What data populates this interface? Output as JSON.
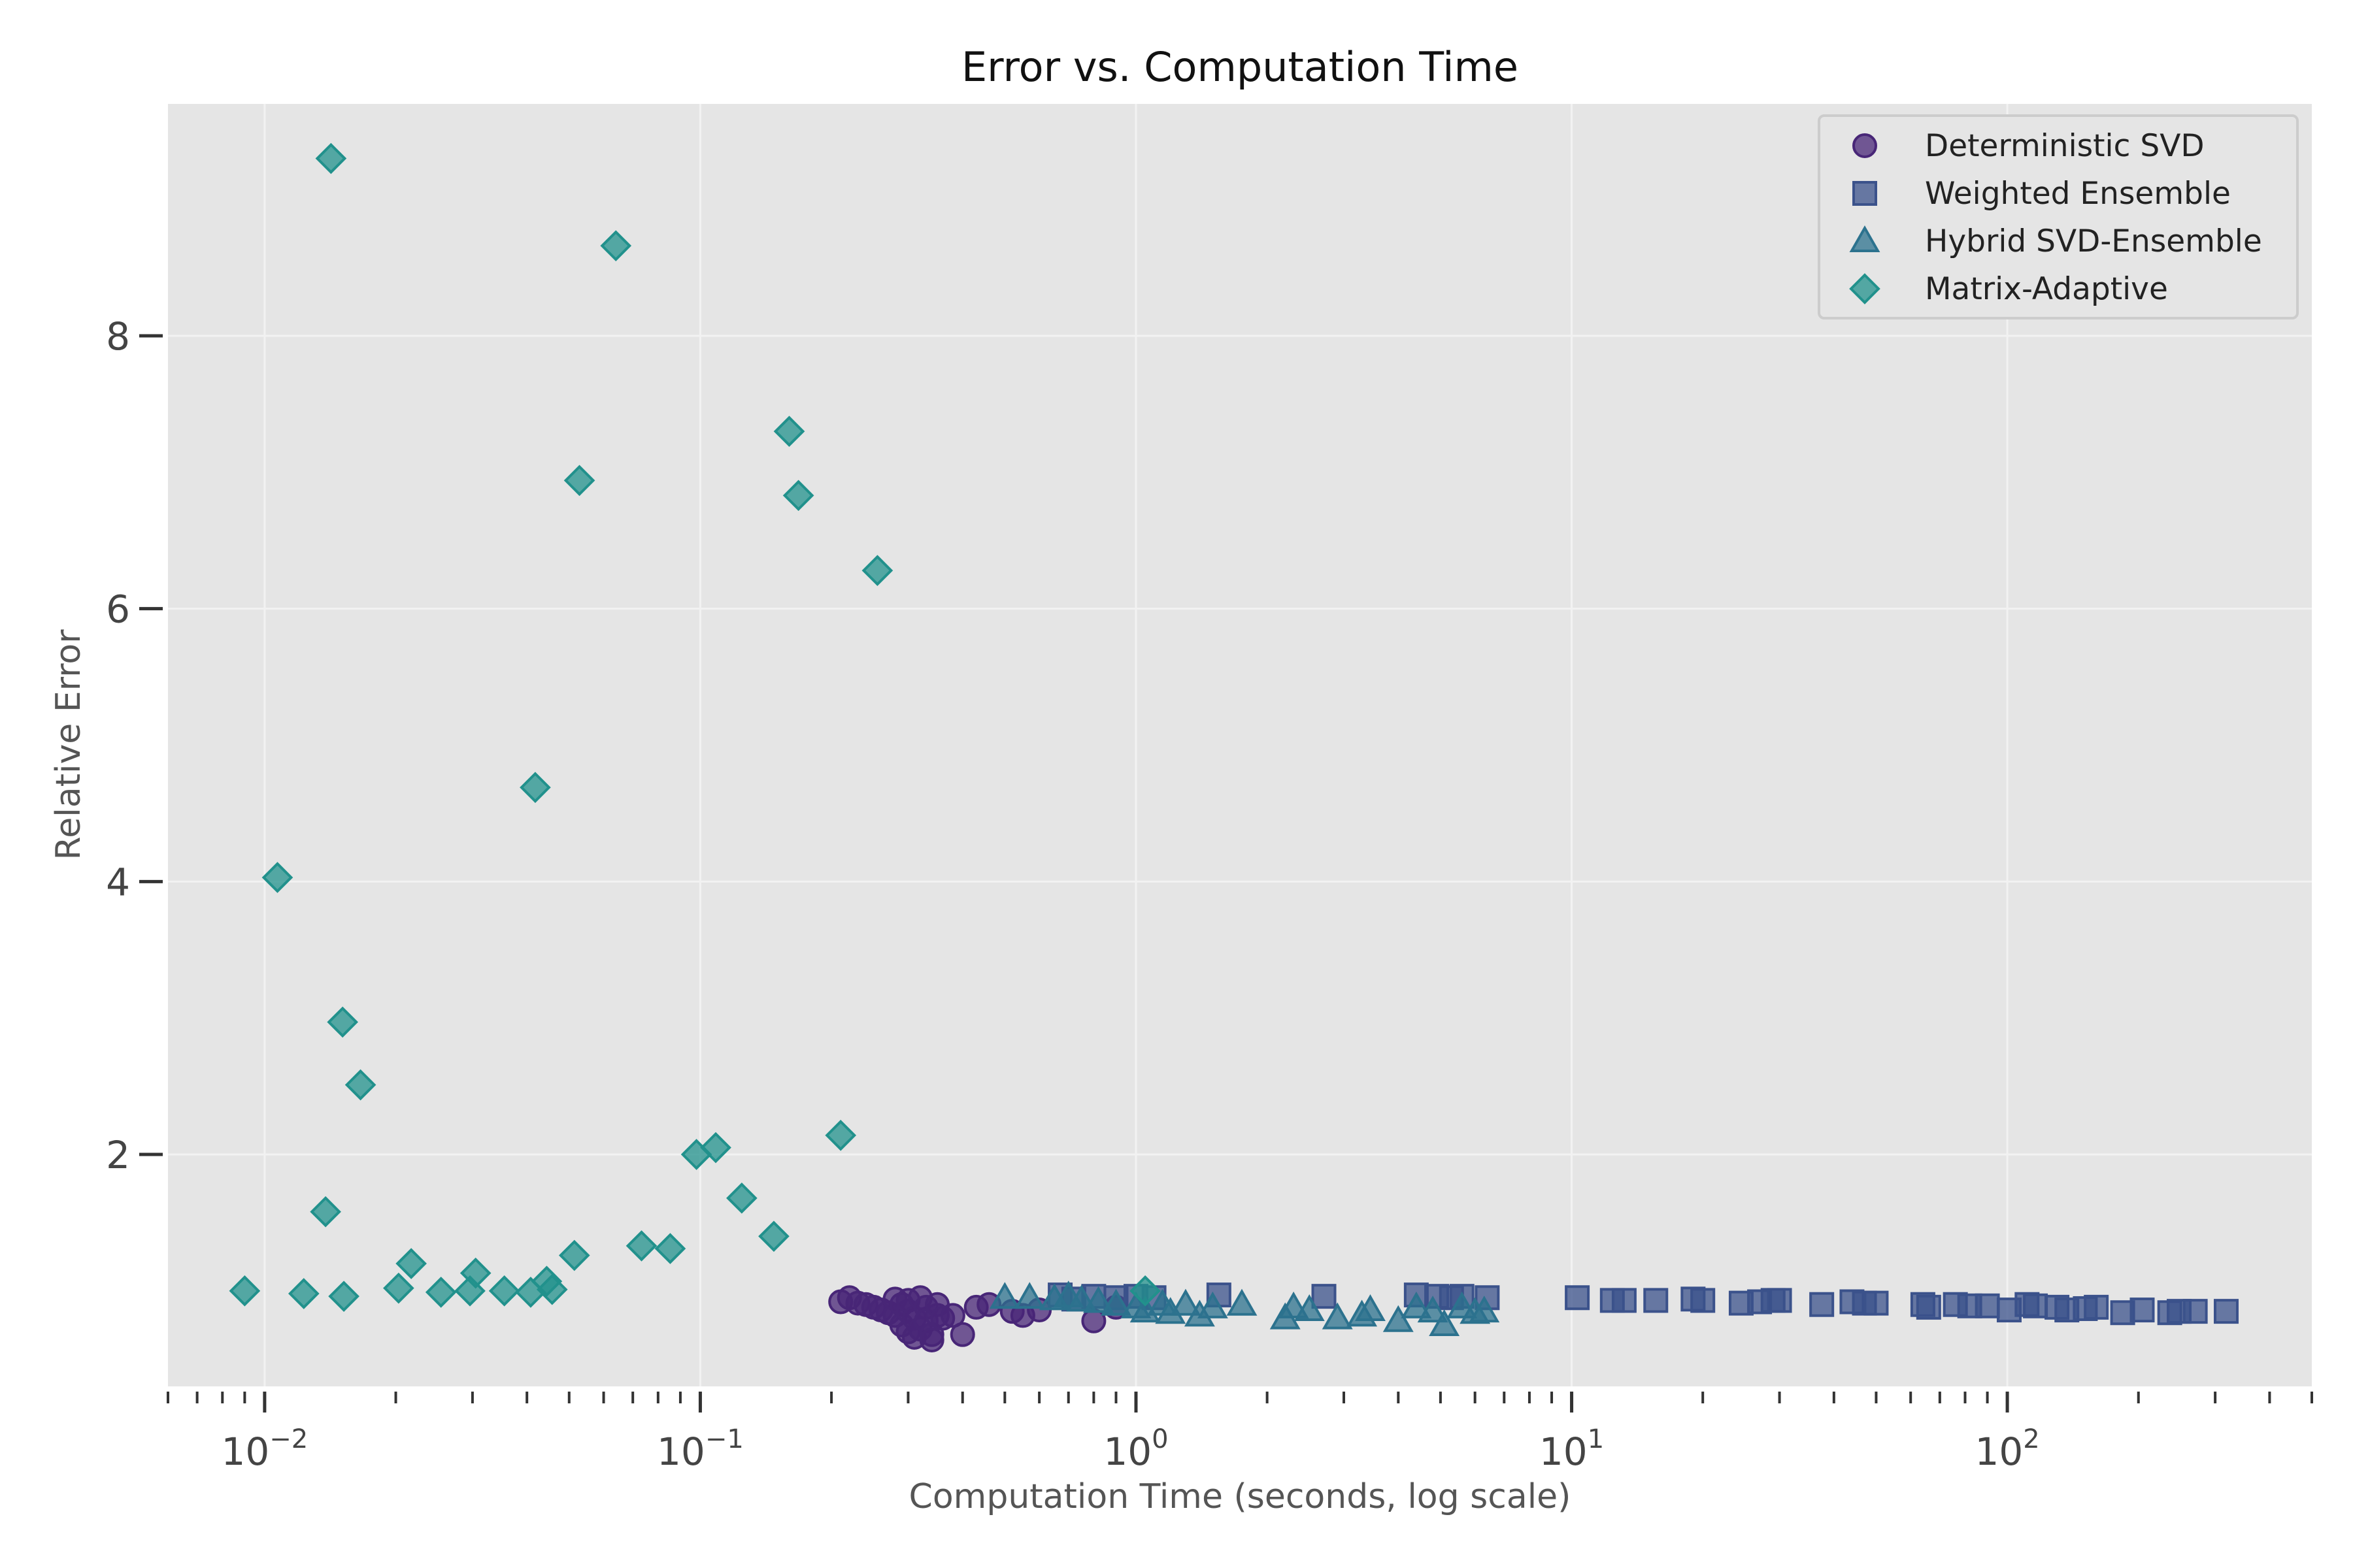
{
  "chart_data": {
    "type": "scatter",
    "title": "Error vs. Computation Time",
    "xlabel": "Computation Time (seconds, log scale)",
    "ylabel": "Relative Error",
    "xscale": "log",
    "xlim": [
      0.006,
      500
    ],
    "ylim": [
      0.3,
      9.7
    ],
    "x_ticks": [
      {
        "value": 0.01,
        "base": "10",
        "exp": "−2"
      },
      {
        "value": 0.1,
        "base": "10",
        "exp": "−1"
      },
      {
        "value": 1,
        "base": "10",
        "exp": "0"
      },
      {
        "value": 10,
        "base": "10",
        "exp": "1"
      },
      {
        "value": 100,
        "base": "10",
        "exp": "2"
      }
    ],
    "y_ticks": [
      {
        "value": 2,
        "label": "2"
      },
      {
        "value": 4,
        "label": "4"
      },
      {
        "value": 6,
        "label": "6"
      },
      {
        "value": 8,
        "label": "8"
      }
    ],
    "grid": true,
    "legend_position": "top-right",
    "background": "#e5e5e5",
    "series": [
      {
        "name": "Deterministic SVD",
        "marker": "circle",
        "color": "#482677",
        "points": [
          [
            0.21,
            0.92
          ],
          [
            0.22,
            0.95
          ],
          [
            0.23,
            0.91
          ],
          [
            0.24,
            0.9
          ],
          [
            0.25,
            0.88
          ],
          [
            0.26,
            0.86
          ],
          [
            0.27,
            0.84
          ],
          [
            0.28,
            0.82
          ],
          [
            0.28,
            0.94
          ],
          [
            0.29,
            0.9
          ],
          [
            0.29,
            0.75
          ],
          [
            0.3,
            0.7
          ],
          [
            0.3,
            0.85
          ],
          [
            0.3,
            0.93
          ],
          [
            0.31,
            0.8
          ],
          [
            0.31,
            0.66
          ],
          [
            0.32,
            0.95
          ],
          [
            0.32,
            0.72
          ],
          [
            0.33,
            0.88
          ],
          [
            0.33,
            0.78
          ],
          [
            0.34,
            0.68
          ],
          [
            0.34,
            0.64
          ],
          [
            0.35,
            0.82
          ],
          [
            0.35,
            0.9
          ],
          [
            0.36,
            0.8
          ],
          [
            0.38,
            0.82
          ],
          [
            0.4,
            0.68
          ],
          [
            0.43,
            0.88
          ],
          [
            0.46,
            0.9
          ],
          [
            0.52,
            0.85
          ],
          [
            0.55,
            0.82
          ],
          [
            0.6,
            0.86
          ],
          [
            0.8,
            0.78
          ],
          [
            0.9,
            0.88
          ]
        ]
      },
      {
        "name": "Weighted Ensemble",
        "marker": "square",
        "color": "#3b528b",
        "points": [
          [
            0.67,
            0.97
          ],
          [
            0.72,
            0.94
          ],
          [
            0.8,
            0.96
          ],
          [
            0.9,
            0.95
          ],
          [
            1.0,
            0.96
          ],
          [
            1.1,
            0.95
          ],
          [
            1.55,
            0.97
          ],
          [
            2.7,
            0.96
          ],
          [
            4.4,
            0.97
          ],
          [
            4.9,
            0.96
          ],
          [
            5.3,
            0.95
          ],
          [
            5.6,
            0.96
          ],
          [
            6.4,
            0.95
          ],
          [
            10.3,
            0.95
          ],
          [
            12.4,
            0.93
          ],
          [
            13.2,
            0.93
          ],
          [
            15.6,
            0.93
          ],
          [
            19,
            0.94
          ],
          [
            20,
            0.93
          ],
          [
            24.5,
            0.91
          ],
          [
            27,
            0.92
          ],
          [
            29,
            0.93
          ],
          [
            30,
            0.93
          ],
          [
            37.5,
            0.9
          ],
          [
            44,
            0.92
          ],
          [
            47,
            0.91
          ],
          [
            50,
            0.91
          ],
          [
            64,
            0.9
          ],
          [
            66,
            0.88
          ],
          [
            76,
            0.9
          ],
          [
            82,
            0.89
          ],
          [
            90,
            0.89
          ],
          [
            101,
            0.86
          ],
          [
            111,
            0.9
          ],
          [
            116,
            0.89
          ],
          [
            130,
            0.88
          ],
          [
            137,
            0.86
          ],
          [
            151,
            0.87
          ],
          [
            160,
            0.88
          ],
          [
            184,
            0.84
          ],
          [
            204,
            0.86
          ],
          [
            236,
            0.84
          ],
          [
            248,
            0.85
          ],
          [
            270,
            0.85
          ],
          [
            318,
            0.85
          ]
        ]
      },
      {
        "name": "Hybrid SVD-Ensemble",
        "marker": "triangle",
        "color": "#2c728e",
        "points": [
          [
            0.5,
            0.95
          ],
          [
            0.57,
            0.95
          ],
          [
            0.65,
            0.94
          ],
          [
            0.7,
            0.96
          ],
          [
            0.75,
            0.93
          ],
          [
            0.82,
            0.92
          ],
          [
            0.9,
            0.9
          ],
          [
            1.0,
            0.88
          ],
          [
            1.05,
            0.85
          ],
          [
            1.15,
            0.9
          ],
          [
            1.2,
            0.84
          ],
          [
            1.3,
            0.9
          ],
          [
            1.4,
            0.82
          ],
          [
            1.5,
            0.88
          ],
          [
            1.75,
            0.9
          ],
          [
            2.2,
            0.8
          ],
          [
            2.3,
            0.88
          ],
          [
            2.5,
            0.86
          ],
          [
            2.9,
            0.8
          ],
          [
            3.3,
            0.82
          ],
          [
            3.45,
            0.86
          ],
          [
            4.0,
            0.78
          ],
          [
            4.4,
            0.88
          ],
          [
            4.8,
            0.85
          ],
          [
            5.1,
            0.75
          ],
          [
            5.6,
            0.88
          ],
          [
            6.0,
            0.84
          ],
          [
            6.3,
            0.85
          ]
        ]
      },
      {
        "name": "Matrix-Adaptive",
        "marker": "diamond",
        "color": "#21918c",
        "points": [
          [
            0.009,
            1.0
          ],
          [
            0.0107,
            4.03
          ],
          [
            0.0123,
            0.98
          ],
          [
            0.0138,
            1.58
          ],
          [
            0.0142,
            9.3
          ],
          [
            0.0151,
            2.97
          ],
          [
            0.0152,
            0.96
          ],
          [
            0.0166,
            2.51
          ],
          [
            0.0203,
            1.02
          ],
          [
            0.0217,
            1.2
          ],
          [
            0.0254,
            0.99
          ],
          [
            0.0296,
            1.0
          ],
          [
            0.0305,
            1.13
          ],
          [
            0.0355,
            1.0
          ],
          [
            0.0408,
            0.99
          ],
          [
            0.0418,
            4.69
          ],
          [
            0.0444,
            1.07
          ],
          [
            0.0457,
            1.01
          ],
          [
            0.0514,
            1.26
          ],
          [
            0.0528,
            6.94
          ],
          [
            0.064,
            8.66
          ],
          [
            0.0733,
            1.33
          ],
          [
            0.0853,
            1.31
          ],
          [
            0.098,
            2.0
          ],
          [
            0.1085,
            2.05
          ],
          [
            0.1245,
            1.68
          ],
          [
            0.1475,
            1.4
          ],
          [
            0.16,
            7.3
          ],
          [
            0.168,
            6.83
          ],
          [
            0.21,
            2.14
          ],
          [
            0.255,
            6.28
          ],
          [
            1.05,
            1.0
          ]
        ]
      }
    ]
  }
}
